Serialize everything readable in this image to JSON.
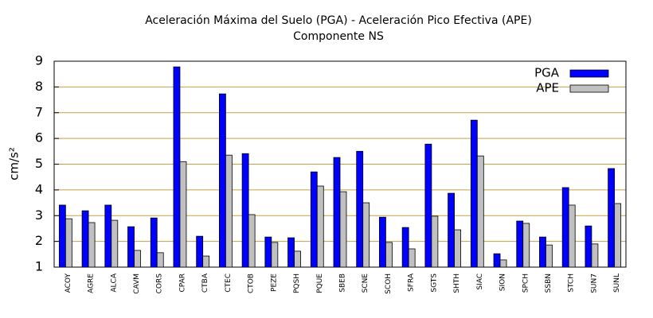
{
  "chart_data": {
    "type": "bar",
    "title": "Aceleración Máxima del Suelo (PGA) -  Aceleración Pico Efectiva (APE)",
    "subtitle": "Componente NS",
    "y_label": "cm/s²",
    "categories": [
      "ACOY",
      "AGRE",
      "ALCA",
      "CAVM",
      "CORS",
      "CPAR",
      "CTBA",
      "CTEC",
      "CTOB",
      "PEZE",
      "PQSH",
      "PQUE",
      "SBEB",
      "SCNE",
      "SCOH",
      "SFRA",
      "SGTS",
      "SHTH",
      "SIAC",
      "SION",
      "SPCH",
      "SSBN",
      "STCH",
      "SUN7",
      "SUNL"
    ],
    "series": [
      {
        "name": "PGA",
        "color": "#0000ff",
        "values": [
          3.41,
          3.19,
          3.41,
          2.57,
          2.91,
          8.78,
          2.2,
          7.73,
          5.41,
          2.17,
          2.14,
          4.7,
          5.26,
          5.5,
          2.94,
          2.54,
          5.78,
          3.87,
          6.71,
          1.52,
          2.79,
          2.17,
          4.09,
          2.6,
          4.83
        ]
      },
      {
        "name": "APE",
        "color": "#c0c0c0",
        "values": [
          2.88,
          2.73,
          2.82,
          1.65,
          1.56,
          5.1,
          1.43,
          5.35,
          3.04,
          1.96,
          1.62,
          4.15,
          3.93,
          3.5,
          1.96,
          1.71,
          2.98,
          2.45,
          5.32,
          1.28,
          2.7,
          1.86,
          3.41,
          1.9,
          3.47
        ]
      }
    ],
    "ylim": [
      1,
      9
    ],
    "yticks": [
      1,
      2,
      3,
      4,
      5,
      6,
      7,
      8,
      9
    ],
    "grid": true,
    "legend": "top-right"
  }
}
